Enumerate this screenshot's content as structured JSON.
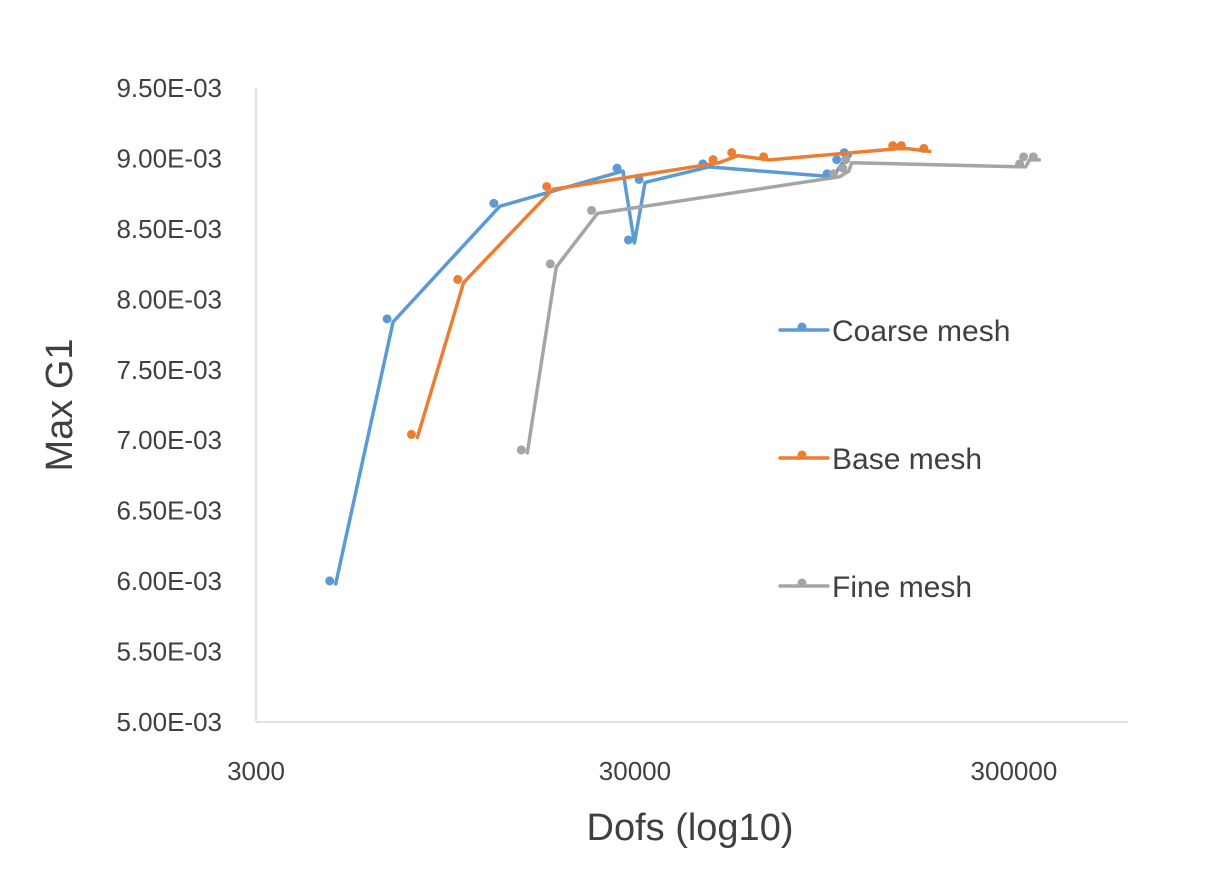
{
  "chart_data": {
    "type": "line",
    "xlabel": "Dofs (log10)",
    "ylabel": "Max G1",
    "x_scale": "log",
    "xlim": [
      3000,
      600000
    ],
    "ylim": [
      0.005,
      0.0095
    ],
    "x_ticks": [
      3000,
      30000,
      300000
    ],
    "x_tick_labels": [
      "3000",
      "30000",
      "300000"
    ],
    "y_ticks": [
      0.005,
      0.0055,
      0.006,
      0.0065,
      0.007,
      0.0075,
      0.008,
      0.0085,
      0.009,
      0.0095
    ],
    "y_tick_labels": [
      "5.00E-03",
      "5.50E-03",
      "6.00E-03",
      "6.50E-03",
      "7.00E-03",
      "7.50E-03",
      "8.00E-03",
      "8.50E-03",
      "9.00E-03",
      "9.50E-03"
    ],
    "grid": false,
    "legend_position": "right",
    "series": [
      {
        "name": "Coarse mesh",
        "color": "#5B9BD5",
        "x": [
          4870,
          6900,
          13200,
          27900,
          29900,
          31900,
          47000,
          100000,
          106000,
          111000
        ],
        "y": [
          0.00598,
          0.00784,
          0.00866,
          0.00891,
          0.0084,
          0.00883,
          0.00894,
          0.00887,
          0.00897,
          0.00902
        ]
      },
      {
        "name": "Base mesh",
        "color": "#ED7D31",
        "x": [
          8000,
          10600,
          18200,
          50000,
          56000,
          68000,
          149000,
          157000,
          180000
        ],
        "y": [
          0.00702,
          0.00812,
          0.00878,
          0.00897,
          0.00902,
          0.00899,
          0.00907,
          0.00907,
          0.00905
        ]
      },
      {
        "name": "Fine mesh",
        "color": "#A5A5A5",
        "x": [
          15600,
          18600,
          23900,
          104000,
          110000,
          112000,
          322000,
          330000,
          350000
        ],
        "y": [
          0.00691,
          0.00823,
          0.00861,
          0.00887,
          0.00891,
          0.00897,
          0.00894,
          0.00899,
          0.00899
        ]
      }
    ]
  }
}
